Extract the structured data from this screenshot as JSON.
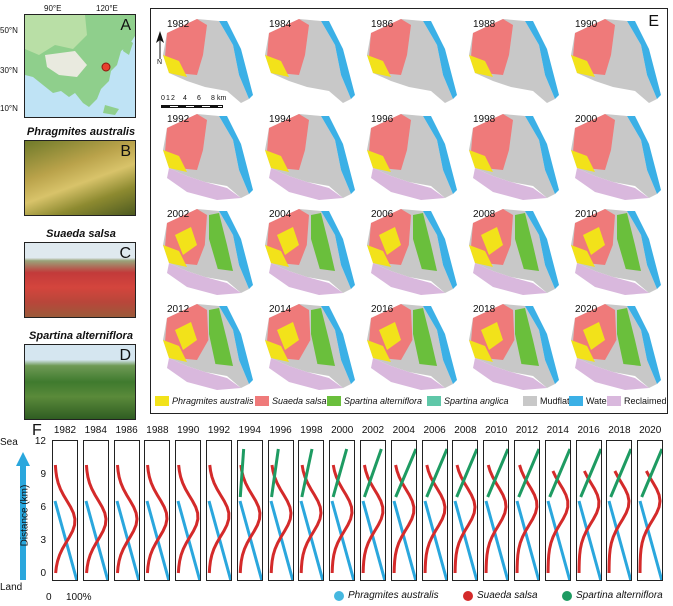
{
  "panel_a": {
    "letter": "A",
    "lon_labels": [
      "90°E",
      "120°E"
    ],
    "lat_labels": [
      "50°N",
      "30°N",
      "10°N"
    ]
  },
  "panel_b": {
    "letter": "B",
    "caption": "Phragmites australis"
  },
  "panel_c": {
    "letter": "C",
    "caption": "Suaeda salsa"
  },
  "panel_d": {
    "letter": "D",
    "caption": "Spartina alterniflora"
  },
  "panel_e": {
    "letter": "E",
    "north": "N",
    "scale_ticks": [
      "0",
      "1",
      "2",
      "4",
      "6",
      "8"
    ],
    "scale_unit": "km",
    "years": [
      "1982",
      "1984",
      "1986",
      "1988",
      "1990",
      "1992",
      "1994",
      "1996",
      "1998",
      "2000",
      "2002",
      "2004",
      "2006",
      "2008",
      "2010",
      "2012",
      "2014",
      "2016",
      "2018",
      "2020"
    ],
    "legend": [
      {
        "label": "Phragmites australis",
        "italic": true,
        "color": "#f2e21a"
      },
      {
        "label": "Suaeda salsa",
        "italic": true,
        "color": "#ef7a7a"
      },
      {
        "label": "Spartina alterniflora",
        "italic": true,
        "color": "#6abf3c"
      },
      {
        "label": "Spartina anglica",
        "italic": true,
        "color": "#5fc7a8"
      },
      {
        "label": "Mudflat",
        "italic": false,
        "color": "#c8c8c8"
      },
      {
        "label": "Water",
        "italic": false,
        "color": "#3bb0e6"
      },
      {
        "label": "Reclaimed",
        "italic": false,
        "color": "#d9b8dd"
      }
    ]
  },
  "panel_f": {
    "letter": "F",
    "years": [
      "1982",
      "1984",
      "1986",
      "1988",
      "1990",
      "1992",
      "1994",
      "1996",
      "1998",
      "2000",
      "2002",
      "2004",
      "2006",
      "2008",
      "2010",
      "2012",
      "2014",
      "2016",
      "2018",
      "2020"
    ],
    "ylabel": "Distance (km)",
    "yticks": [
      "12",
      "9",
      "6",
      "3",
      "0"
    ],
    "sea": "Sea",
    "land": "Land",
    "x_ticks": [
      "0",
      "100%"
    ],
    "legend": [
      {
        "label": "Phragmites australis",
        "color": "#45b8e0"
      },
      {
        "label": "Suaeda salsa",
        "color": "#d42a2a"
      },
      {
        "label": "Spartina alterniflora",
        "color": "#1e9b62"
      }
    ]
  },
  "colors": {
    "phragmites": "#f2e21a",
    "suaeda": "#ef7a7a",
    "spartina": "#6abf3c",
    "mudflat": "#c8c8c8",
    "water": "#3bb0e6",
    "reclaimed": "#d9b8dd",
    "arrow": "#2aa7dd"
  }
}
